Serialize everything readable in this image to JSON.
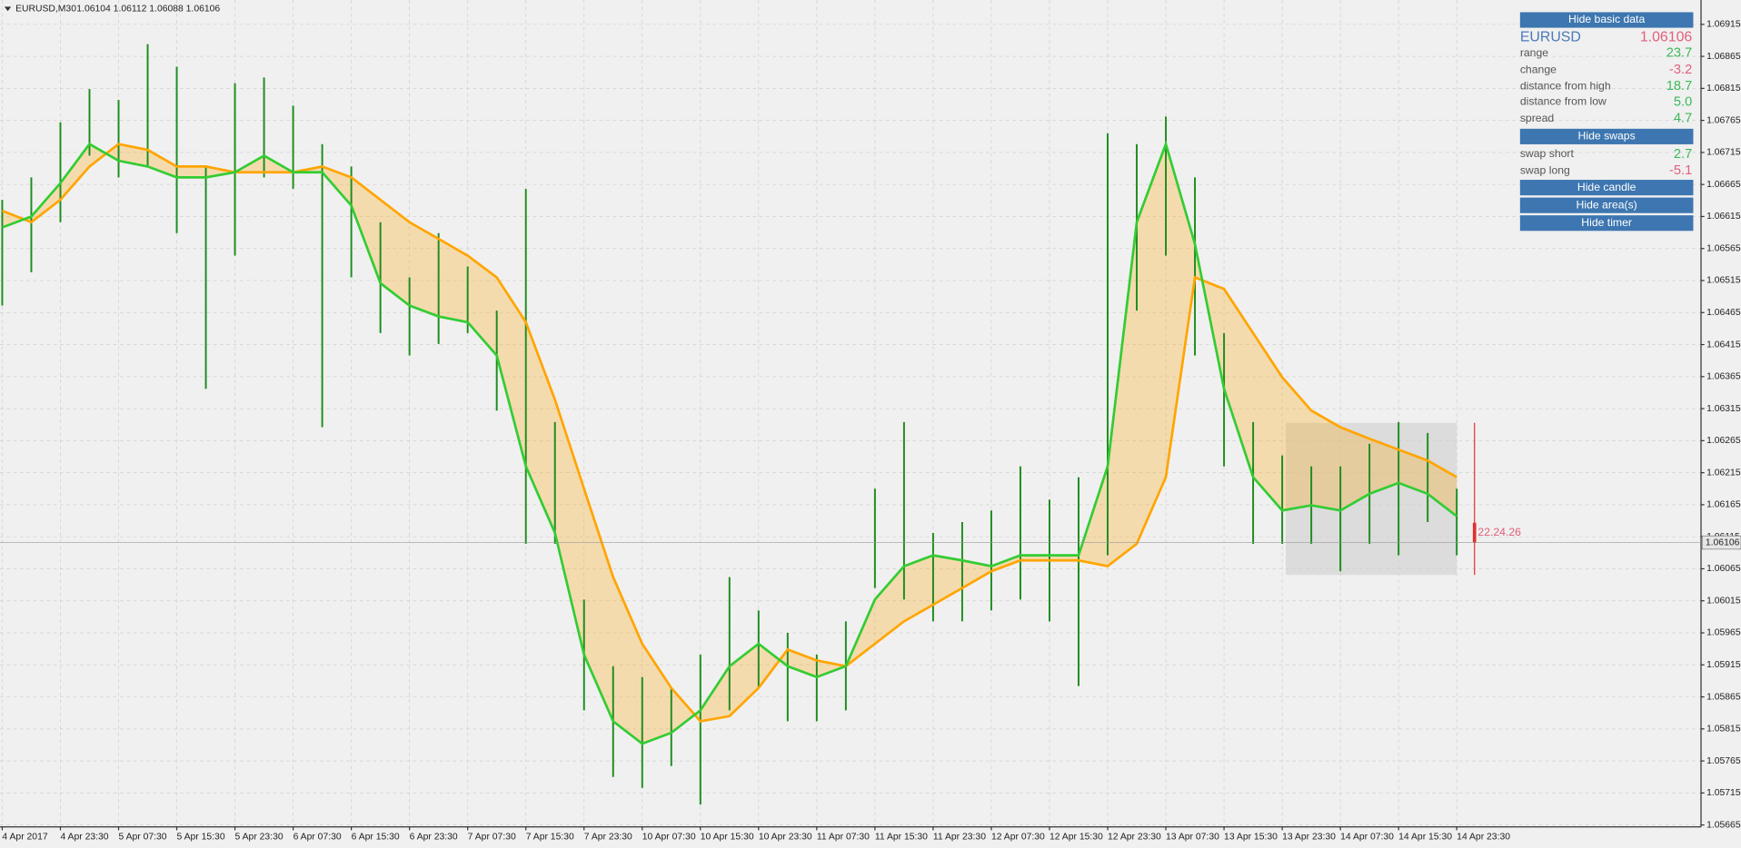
{
  "header": {
    "title": "EURUSD,M30",
    "quote": "1.06104 1.06112 1.06088 1.06106"
  },
  "chart_data": {
    "type": "range-bars",
    "categories": [
      "4 Apr 2017",
      null,
      "4 Apr 23:30",
      null,
      "5 Apr 07:30",
      null,
      "5 Apr 15:30",
      null,
      "5 Apr 23:30",
      null,
      "6 Apr 07:30",
      null,
      "6 Apr 15:30",
      null,
      "6 Apr 23:30",
      null,
      "7 Apr 07:30",
      null,
      "7 Apr 15:30",
      null,
      "7 Apr 23:30",
      null,
      "10 Apr 07:30",
      null,
      "10 Apr 15:30",
      null,
      "10 Apr 23:30",
      null,
      "11 Apr 07:30",
      null,
      "11 Apr 15:30",
      null,
      "11 Apr 23:30",
      null,
      "12 Apr 07:30",
      null,
      "12 Apr 15:30",
      null,
      "12 Apr 23:30",
      null,
      "13 Apr 07:30",
      null,
      "13 Apr 15:30",
      null,
      "13 Apr 23:30",
      null,
      "14 Apr 07:30",
      null,
      "14 Apr 15:30",
      null,
      "14 Apr 23:30"
    ],
    "high": [
      1.06641,
      1.06676,
      1.06762,
      1.06814,
      1.06797,
      1.06884,
      1.06849,
      1.06693,
      1.06823,
      1.06832,
      1.06788,
      1.06728,
      1.06693,
      1.06606,
      1.0652,
      1.06589,
      1.06537,
      1.06468,
      1.06658,
      1.06294,
      1.06017,
      1.05913,
      1.05896,
      1.05879,
      1.05931,
      1.06052,
      1.06,
      1.05965,
      1.05931,
      1.05983,
      1.0619,
      1.06294,
      1.06121,
      1.06138,
      1.06156,
      1.06225,
      1.06173,
      1.06208,
      1.06745,
      1.06728,
      1.06771,
      1.06676,
      1.06433,
      1.06294,
      1.06242,
      1.06225,
      1.06225,
      1.0626,
      1.06294,
      1.06277,
      1.0619
    ],
    "low": [
      1.06476,
      1.06528,
      1.06606,
      1.0671,
      1.06676,
      1.06693,
      1.06589,
      1.06346,
      1.06554,
      1.06676,
      1.06658,
      1.06286,
      1.0652,
      1.06433,
      1.06398,
      1.06416,
      1.06433,
      1.06312,
      1.06104,
      1.06104,
      1.05844,
      1.0574,
      1.05723,
      1.05757,
      1.05697,
      1.05844,
      1.05879,
      1.05827,
      1.05827,
      1.05844,
      1.06035,
      1.06017,
      1.05983,
      1.05983,
      1.06,
      1.06017,
      1.05983,
      1.05882,
      1.06086,
      1.06468,
      1.06554,
      1.06398,
      1.06225,
      1.06104,
      1.06104,
      1.06104,
      1.06061,
      1.06104,
      1.06086,
      1.06138,
      1.06086
    ],
    "color": "#1e8c1e",
    "ma_fast": {
      "color": "#33cc33",
      "values": [
        1.06598,
        1.06615,
        1.06667,
        1.06728,
        1.06702,
        1.06693,
        1.06676,
        1.06676,
        1.06684,
        1.0671,
        1.06684,
        1.06684,
        1.06632,
        1.06511,
        1.06476,
        1.06459,
        1.0645,
        1.06398,
        1.06225,
        1.06121,
        1.05931,
        1.05827,
        1.05792,
        1.05809,
        1.05844,
        1.05913,
        1.05948,
        1.05913,
        1.05896,
        1.05913,
        1.06017,
        1.06069,
        1.06086,
        1.06078,
        1.06069,
        1.06086,
        1.06086,
        1.06086,
        1.06225,
        1.06606,
        1.06728,
        1.06572,
        1.06346,
        1.06208,
        1.06156,
        1.06164,
        1.06156,
        1.06182,
        1.06199,
        1.06182,
        1.06147
      ]
    },
    "ma_slow": {
      "color": "#ffa500",
      "values": [
        1.06624,
        1.06606,
        1.06641,
        1.06693,
        1.06728,
        1.06719,
        1.06693,
        1.06693,
        1.06684,
        1.06684,
        1.06684,
        1.06693,
        1.06676,
        1.06641,
        1.06606,
        1.0658,
        1.06554,
        1.0652,
        1.0645,
        1.06329,
        1.0619,
        1.06052,
        1.05948,
        1.05879,
        1.05827,
        1.05835,
        1.05879,
        1.05939,
        1.05922,
        1.05913,
        1.05948,
        1.05983,
        1.06009,
        1.06035,
        1.06061,
        1.06078,
        1.06078,
        1.06078,
        1.06069,
        1.06104,
        1.06208,
        1.0652,
        1.06502,
        1.06433,
        1.06364,
        1.06312,
        1.06286,
        1.06268,
        1.06251,
        1.06234,
        1.06208
      ]
    },
    "ylim": [
      1.05662,
      1.06953
    ],
    "yticks": [
      1.06915,
      1.06865,
      1.06815,
      1.06765,
      1.06715,
      1.06665,
      1.06615,
      1.06565,
      1.06515,
      1.06465,
      1.06415,
      1.06365,
      1.06315,
      1.06265,
      1.06215,
      1.06165,
      1.06115,
      1.06065,
      1.06015,
      1.05965,
      1.05915,
      1.05865,
      1.05815,
      1.05765,
      1.05715,
      1.05665
    ],
    "grid": true,
    "current_price": 1.06106,
    "timer": "22.24.26"
  },
  "panel": {
    "basic_button": "Hide basic data",
    "symbol": "EURUSD",
    "price": "1.06106",
    "basic_rows": [
      [
        "range",
        "23.7"
      ],
      [
        "change",
        "-3.2"
      ],
      [
        "distance from high",
        "18.7"
      ],
      [
        "distance from low",
        "5.0"
      ],
      [
        "spread",
        "4.7"
      ]
    ],
    "swaps_button": "Hide swaps",
    "swap_rows": [
      [
        "swap short",
        "2.7"
      ],
      [
        "swap long",
        "-5.1"
      ]
    ],
    "candle_button": "Hide candle",
    "area_button": "Hide area(s)",
    "timer_button": "Hide timer"
  }
}
